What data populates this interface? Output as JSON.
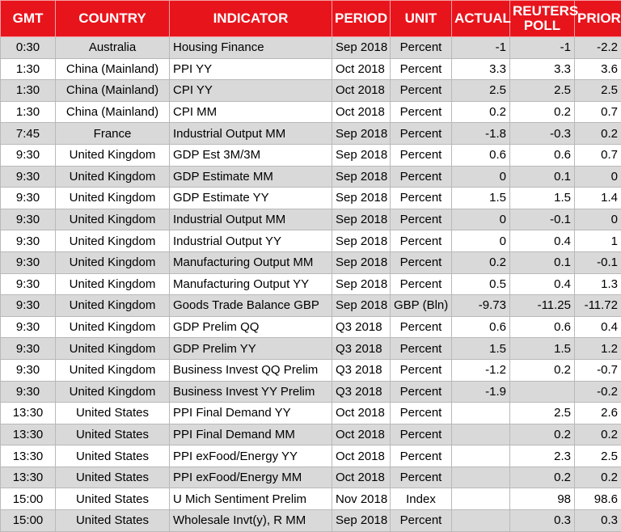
{
  "table": {
    "headers": [
      "GMT",
      "COUNTRY",
      "INDICATOR",
      "PERIOD",
      "UNIT",
      "ACTUAL",
      "REUTERS POLL",
      "PRIOR"
    ],
    "rows": [
      [
        "0:30",
        "Australia",
        "Housing Finance",
        "Sep 2018",
        "Percent",
        -1,
        -1,
        -2.2
      ],
      [
        "1:30",
        "China (Mainland)",
        "PPI YY",
        "Oct 2018",
        "Percent",
        3.3,
        3.3,
        3.6
      ],
      [
        "1:30",
        "China (Mainland)",
        "CPI YY",
        "Oct 2018",
        "Percent",
        2.5,
        2.5,
        2.5
      ],
      [
        "1:30",
        "China (Mainland)",
        "CPI MM",
        "Oct 2018",
        "Percent",
        0.2,
        0.2,
        0.7
      ],
      [
        "7:45",
        "France",
        "Industrial Output MM",
        "Sep 2018",
        "Percent",
        -1.8,
        -0.3,
        0.2
      ],
      [
        "9:30",
        "United Kingdom",
        "GDP Est 3M/3M",
        "Sep 2018",
        "Percent",
        0.6,
        0.6,
        0.7
      ],
      [
        "9:30",
        "United Kingdom",
        "GDP Estimate MM",
        "Sep 2018",
        "Percent",
        0,
        0.1,
        0
      ],
      [
        "9:30",
        "United Kingdom",
        "GDP Estimate YY",
        "Sep 2018",
        "Percent",
        1.5,
        1.5,
        1.4
      ],
      [
        "9:30",
        "United Kingdom",
        "Industrial Output MM",
        "Sep 2018",
        "Percent",
        0,
        -0.1,
        0
      ],
      [
        "9:30",
        "United Kingdom",
        "Industrial Output YY",
        "Sep 2018",
        "Percent",
        0,
        0.4,
        1
      ],
      [
        "9:30",
        "United Kingdom",
        "Manufacturing Output MM",
        "Sep 2018",
        "Percent",
        0.2,
        0.1,
        -0.1
      ],
      [
        "9:30",
        "United Kingdom",
        "Manufacturing Output YY",
        "Sep 2018",
        "Percent",
        0.5,
        0.4,
        1.3
      ],
      [
        "9:30",
        "United Kingdom",
        "Goods Trade Balance GBP",
        "Sep 2018",
        "GBP (Bln)",
        -9.73,
        -11.25,
        -11.72
      ],
      [
        "9:30",
        "United Kingdom",
        "GDP Prelim QQ",
        "Q3 2018",
        "Percent",
        0.6,
        0.6,
        0.4
      ],
      [
        "9:30",
        "United Kingdom",
        "GDP Prelim YY",
        "Q3 2018",
        "Percent",
        1.5,
        1.5,
        1.2
      ],
      [
        "9:30",
        "United Kingdom",
        "Business Invest QQ Prelim",
        "Q3 2018",
        "Percent",
        -1.2,
        0.2,
        -0.7
      ],
      [
        "9:30",
        "United Kingdom",
        "Business Invest YY Prelim",
        "Q3 2018",
        "Percent",
        -1.9,
        null,
        -0.2
      ],
      [
        "13:30",
        "United States",
        "PPI Final Demand YY",
        "Oct 2018",
        "Percent",
        null,
        2.5,
        2.6
      ],
      [
        "13:30",
        "United States",
        "PPI Final Demand MM",
        "Oct 2018",
        "Percent",
        null,
        0.2,
        0.2
      ],
      [
        "13:30",
        "United States",
        "PPI exFood/Energy YY",
        "Oct 2018",
        "Percent",
        null,
        2.3,
        2.5
      ],
      [
        "13:30",
        "United States",
        "PPI exFood/Energy MM",
        "Oct 2018",
        "Percent",
        null,
        0.2,
        0.2
      ],
      [
        "15:00",
        "United States",
        "U Mich Sentiment Prelim",
        "Nov 2018",
        "Index",
        null,
        98,
        98.6
      ],
      [
        "15:00",
        "United States",
        "Wholesale Invt(y), R MM",
        "Sep 2018",
        "Percent",
        null,
        0.3,
        0.3
      ]
    ]
  }
}
